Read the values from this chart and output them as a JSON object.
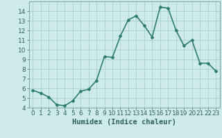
{
  "x": [
    0,
    1,
    2,
    3,
    4,
    5,
    6,
    7,
    8,
    9,
    10,
    11,
    12,
    13,
    14,
    15,
    16,
    17,
    18,
    19,
    20,
    21,
    22,
    23
  ],
  "y": [
    5.8,
    5.5,
    5.1,
    4.3,
    4.2,
    4.7,
    5.7,
    5.9,
    6.8,
    9.3,
    9.2,
    11.4,
    13.1,
    13.5,
    12.5,
    11.3,
    14.4,
    14.3,
    12.0,
    10.4,
    11.0,
    8.6,
    8.6,
    7.8
  ],
  "line_color": "#2e7d6e",
  "marker": "D",
  "marker_size": 2,
  "bg_color": "#ceeaea",
  "grid_color": "#aacece",
  "xlabel": "Humidex (Indice chaleur)",
  "xlim": [
    -0.5,
    23.5
  ],
  "ylim": [
    4,
    15
  ],
  "yticks": [
    4,
    5,
    6,
    7,
    8,
    9,
    10,
    11,
    12,
    13,
    14
  ],
  "xticks": [
    0,
    1,
    2,
    3,
    4,
    5,
    6,
    7,
    8,
    9,
    10,
    11,
    12,
    13,
    14,
    15,
    16,
    17,
    18,
    19,
    20,
    21,
    22,
    23
  ],
  "xlabel_fontsize": 7.5,
  "tick_fontsize": 6.5,
  "line_width": 1.2
}
